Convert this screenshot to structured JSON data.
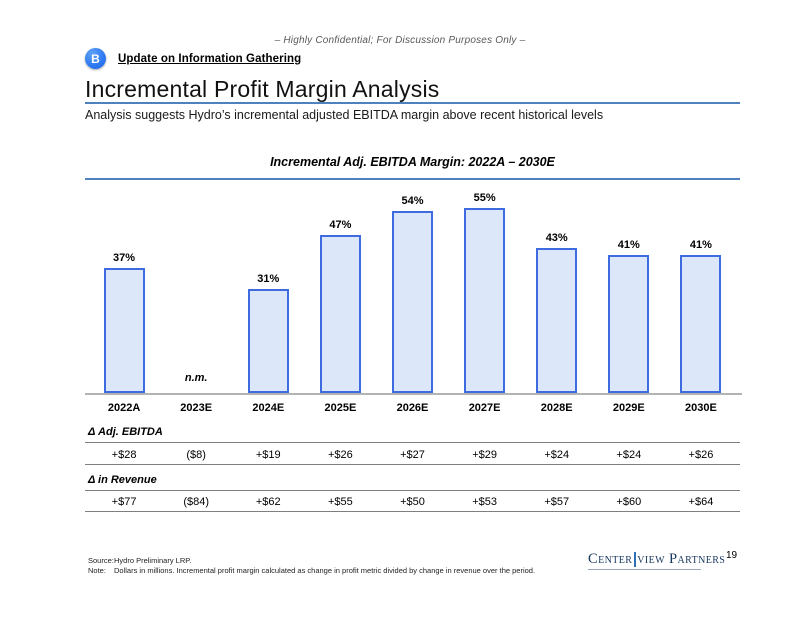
{
  "header": {
    "confidential": "– Highly Confidential; For Discussion Purposes Only –",
    "badge_label": "B",
    "section_link": "Update on Information Gathering",
    "title": "Incremental Profit Margin Analysis",
    "subtitle": "Analysis suggests Hydro’s incremental adjusted EBITDA margin above recent historical levels"
  },
  "chart_data": {
    "type": "bar",
    "title": "Incremental Adj. EBITDA Margin: 2022A – 2030E",
    "categories": [
      "2022A",
      "2023E",
      "2024E",
      "2025E",
      "2026E",
      "2027E",
      "2028E",
      "2029E",
      "2030E"
    ],
    "values": [
      37,
      null,
      31,
      47,
      54,
      55,
      43,
      41,
      41
    ],
    "display_labels": [
      "37%",
      "n.m.",
      "31%",
      "47%",
      "54%",
      "55%",
      "43%",
      "41%",
      "41%"
    ],
    "unit": "%",
    "ylim": [
      0,
      60
    ],
    "grid": false,
    "legend": "none",
    "bar_fill": "#dde7fa",
    "bar_border": "#3f6be0",
    "accent_rule_color": "#4f81bd"
  },
  "table": {
    "rows": [
      {
        "label": "Δ Adj. EBITDA",
        "values": [
          "+$28",
          "($8)",
          "+$19",
          "+$26",
          "+$27",
          "+$29",
          "+$24",
          "+$24",
          "+$26"
        ]
      },
      {
        "label": "Δ in Revenue",
        "values": [
          "+$77",
          "($84)",
          "+$62",
          "+$55",
          "+$50",
          "+$53",
          "+$57",
          "+$60",
          "+$64"
        ]
      }
    ]
  },
  "footer": {
    "source_label": "Source:",
    "source_text": "Hydro Preliminary LRP.",
    "note_label": "Note:",
    "note_text": "Dollars in millions. Incremental profit margin calculated as change in profit metric divided by change in revenue over the period.",
    "logo_part1": "Center",
    "logo_part2": "view Partners",
    "logo_color": "#17375e",
    "page_number": "19"
  }
}
